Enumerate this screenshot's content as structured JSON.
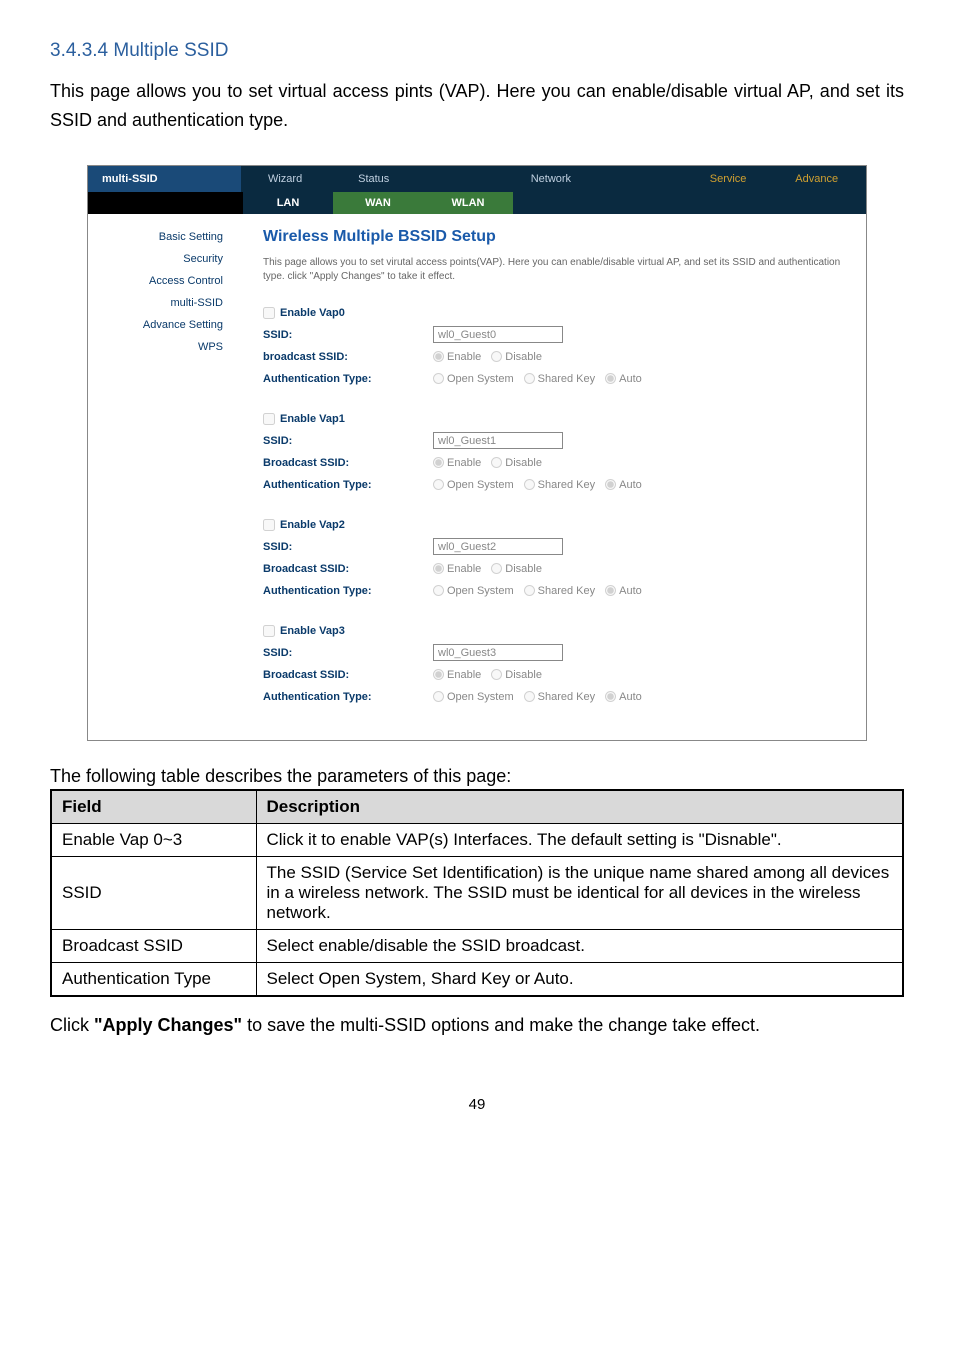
{
  "heading": "3.4.3.4 Multiple SSID",
  "intro": "This page allows you to set virtual access pints (VAP). Here you can enable/disable virtual AP, and set its SSID and authentication type.",
  "panel": {
    "brand": "multi-SSID",
    "topnav": [
      "Wizard",
      "Status",
      "",
      "Network",
      "",
      "Service",
      "Advance"
    ],
    "subtabs": {
      "lan": "LAN",
      "wan": "WAN",
      "wlan": "WLAN"
    },
    "sidebar": [
      "Basic Setting",
      "Security",
      "Access Control",
      "multi-SSID",
      "Advance Setting",
      "WPS"
    ],
    "sidebar_active_index": 3,
    "title": "Wireless Multiple BSSID Setup",
    "desc": "This page allows you to set virutal access points(VAP). Here you can enable/disable virtual AP, and set its SSID and authentication type. click \"Apply Changes\" to take it effect.",
    "vaps": [
      {
        "enable_label": "Enable Vap0",
        "ssid_label": "SSID:",
        "ssid_val": "wl0_Guest0",
        "bcast_label": "broadcast SSID:",
        "auth_label": "Authentication Type:"
      },
      {
        "enable_label": "Enable Vap1",
        "ssid_label": "SSID:",
        "ssid_val": "wl0_Guest1",
        "bcast_label": "Broadcast SSID:",
        "auth_label": "Authentication Type:"
      },
      {
        "enable_label": "Enable Vap2",
        "ssid_label": "SSID:",
        "ssid_val": "wl0_Guest2",
        "bcast_label": "Broadcast SSID:",
        "auth_label": "Authentication Type:"
      },
      {
        "enable_label": "Enable Vap3",
        "ssid_label": "SSID:",
        "ssid_val": "wl0_Guest3",
        "bcast_label": "Broadcast SSID:",
        "auth_label": "Authentication Type:"
      }
    ],
    "radio_labels": {
      "enable": "Enable",
      "disable": "Disable",
      "open": "Open System",
      "shared": "Shared Key",
      "auto": "Auto"
    }
  },
  "table_intro": "The following table describes the parameters of this page:",
  "table": {
    "headers": [
      "Field",
      "Description"
    ],
    "rows": [
      [
        "Enable Vap 0~3",
        "Click it to enable VAP(s) Interfaces. The default setting is \"Disnable\"."
      ],
      [
        "SSID",
        "The SSID (Service Set Identification) is the unique name shared among all devices in a wireless network. The SSID must be identical for all devices in the wireless network."
      ],
      [
        "Broadcast SSID",
        "Select enable/disable the SSID broadcast."
      ],
      [
        "Authentication Type",
        "Select Open System, Shard Key or Auto."
      ]
    ]
  },
  "closing_pre": "Click ",
  "closing_bold": "\"Apply Changes\"",
  "closing_post": " to save the multi-SSID options and make the change take effect.",
  "page_num": "49"
}
